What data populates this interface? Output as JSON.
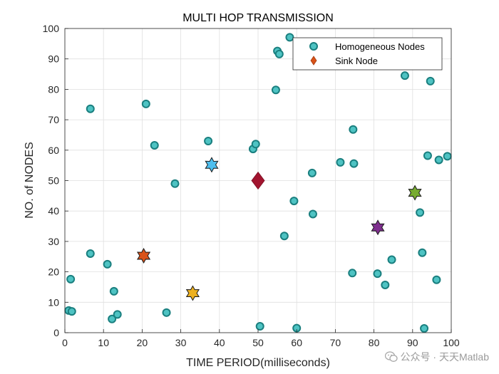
{
  "chart_data": {
    "type": "scatter",
    "title": "MULTI HOP TRANSMISSION",
    "xlabel": "TIME PERIOD(milliseconds)",
    "ylabel": "NO. of NODES",
    "xlim": [
      0,
      100
    ],
    "ylim": [
      0,
      100
    ],
    "xticks": [
      0,
      10,
      20,
      30,
      40,
      50,
      60,
      70,
      80,
      90,
      100
    ],
    "yticks": [
      0,
      10,
      20,
      30,
      40,
      50,
      60,
      70,
      80,
      90,
      100
    ],
    "grid": true,
    "legend": {
      "position": "top-right",
      "entries": [
        "Homogeneous Nodes",
        "Sink Node"
      ]
    },
    "series": [
      {
        "name": "Homogeneous Nodes",
        "marker": "circle",
        "face_color": "#4ec3c3",
        "edge_color": "#1a7f7f",
        "points": [
          [
            1.0,
            7.3
          ],
          [
            1.8,
            7.0
          ],
          [
            1.5,
            17.6
          ],
          [
            6.6,
            26.0
          ],
          [
            6.6,
            73.6
          ],
          [
            11.0,
            22.5
          ],
          [
            12.2,
            4.5
          ],
          [
            12.7,
            13.6
          ],
          [
            13.6,
            6.0
          ],
          [
            21.0,
            75.2
          ],
          [
            23.2,
            61.6
          ],
          [
            26.3,
            6.6
          ],
          [
            28.5,
            49.0
          ],
          [
            37.1,
            63.0
          ],
          [
            48.7,
            60.4
          ],
          [
            49.4,
            62.0
          ],
          [
            50.5,
            2.1
          ],
          [
            54.6,
            79.8
          ],
          [
            55.0,
            92.6
          ],
          [
            55.5,
            91.6
          ],
          [
            56.8,
            31.8
          ],
          [
            58.2,
            97.1
          ],
          [
            59.3,
            43.3
          ],
          [
            60.0,
            1.5
          ],
          [
            64.0,
            52.5
          ],
          [
            64.2,
            39.0
          ],
          [
            71.3,
            56.0
          ],
          [
            74.4,
            19.6
          ],
          [
            74.6,
            66.8
          ],
          [
            74.8,
            55.6
          ],
          [
            80.9,
            19.4
          ],
          [
            82.9,
            15.7
          ],
          [
            84.6,
            24.0
          ],
          [
            88.0,
            84.5
          ],
          [
            91.9,
            39.5
          ],
          [
            92.5,
            26.3
          ],
          [
            93.0,
            1.4
          ],
          [
            93.9,
            58.2
          ],
          [
            94.6,
            82.7
          ],
          [
            96.2,
            17.4
          ],
          [
            96.8,
            56.8
          ],
          [
            99.0,
            58.0
          ]
        ]
      },
      {
        "name": "Sink Node",
        "marker": "diamond",
        "color": "#a2142f",
        "points": [
          [
            50.0,
            50.0
          ]
        ]
      },
      {
        "marker": "hexagram",
        "points": [
          {
            "x": 20.4,
            "y": 25.3,
            "color": "#d95319"
          },
          {
            "x": 33.1,
            "y": 13.0,
            "color": "#edb120"
          },
          {
            "x": 38.0,
            "y": 55.2,
            "color": "#4dbeee"
          },
          {
            "x": 81.0,
            "y": 34.6,
            "color": "#7e2f8e"
          },
          {
            "x": 90.6,
            "y": 46.0,
            "color": "#77ac30"
          }
        ]
      }
    ]
  },
  "watermark": {
    "text": "公众号 · 天天Matlab"
  }
}
